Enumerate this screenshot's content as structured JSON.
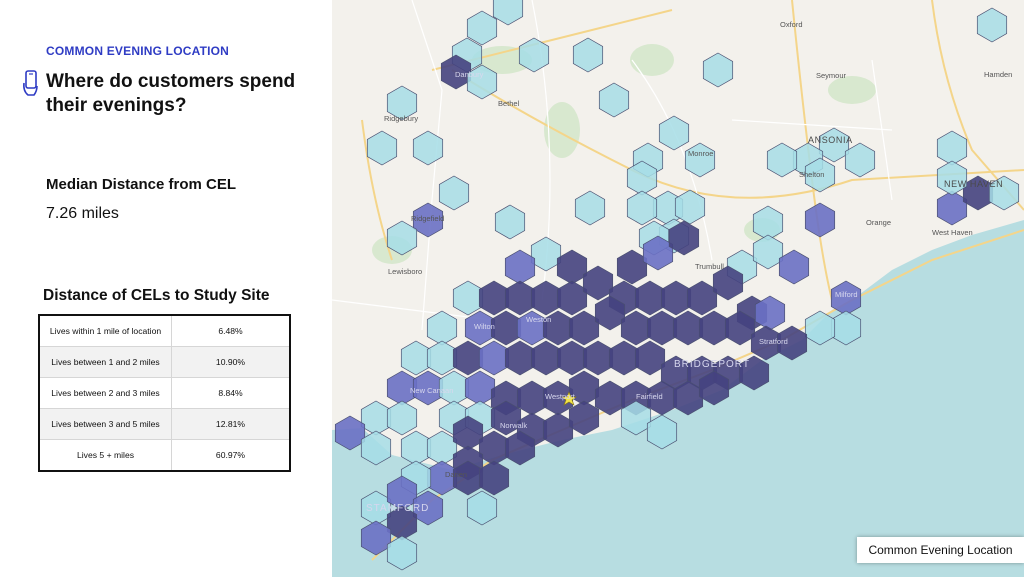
{
  "header": {
    "eyebrow": "COMMON EVENING LOCATION",
    "title": "Where do customers spend their evenings?",
    "title_icon": "phone-hand-icon"
  },
  "metric": {
    "label": "Median Distance from CEL",
    "value": "7.26 miles"
  },
  "table": {
    "title": "Distance of CELs to Study Site",
    "rows": [
      {
        "label": "Lives within 1 mile of location",
        "value": "6.48%"
      },
      {
        "label": "Lives between 1 and 2 miles",
        "value": "10.90%"
      },
      {
        "label": "Lives between 2 and 3 miles",
        "value": "8.84%"
      },
      {
        "label": "Lives between 3 and 5 miles",
        "value": "12.81%"
      },
      {
        "label": "Lives 5 + miles",
        "value": "60.97%"
      }
    ]
  },
  "map": {
    "legend_label": "Common Evening Location",
    "colors": {
      "light": "#a6dde6",
      "medium": "#6a70c4",
      "dark": "#45427f",
      "land": "#f3f1ec",
      "water": "#b7dde1",
      "study_site": "#f2e34a"
    },
    "places": {
      "oxford": "Oxford",
      "danbury": "Danbury",
      "bethel": "Bethel",
      "seymour": "Seymour",
      "hamden": "Hamden",
      "ridgebury": "Ridgebury",
      "ansonia": "ANSONIA",
      "monroe": "Monroe",
      "shelton": "Shelton",
      "new_haven": "NEW HAVEN",
      "ridgefield": "Ridgefield",
      "orange": "Orange",
      "west_haven": "West Haven",
      "lewisboro": "Lewisboro",
      "trumbull": "Trumbull",
      "milford": "Milford",
      "weston": "Weston",
      "wilton": "Wilton",
      "stratford": "Stratford",
      "bridgeport": "BRIDGEPORT",
      "new_canaan": "New Canaan",
      "westport": "Westport",
      "fairfield": "Fairfield",
      "norwalk": "Norwalk",
      "darien": "Darien",
      "stamford": "STAMFORD"
    }
  }
}
